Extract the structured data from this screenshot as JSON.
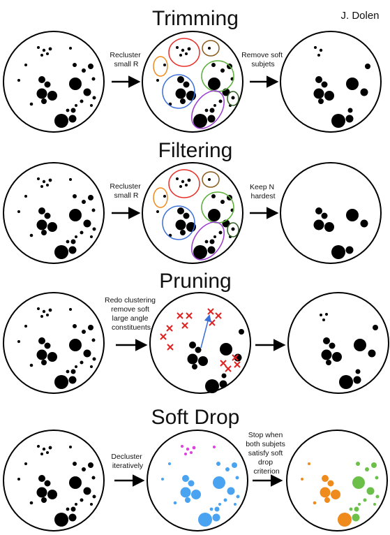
{
  "author": "J. Dolen",
  "colors": {
    "particle": "#000000",
    "red": "#e8312b",
    "orange": "#ef8a1c",
    "brown": "#8a5a1c",
    "green": "#5cb03a",
    "blue": "#3a6fd8",
    "purple": "#9b3bd1",
    "darkgreen": "#2b5a1e",
    "magenta": "#e040e0",
    "lightblue": "#4aa3f0",
    "softgreen": "#6cc04a",
    "cross": "#e02222",
    "arrow": "#3a6fd8"
  },
  "sections": [
    {
      "title": "Trimming",
      "steps": [
        {
          "lines": [
            "Recluster",
            "small R"
          ]
        },
        {
          "lines": [
            "Remove soft",
            "subjets"
          ]
        }
      ]
    },
    {
      "title": "Filtering",
      "steps": [
        {
          "lines": [
            "Recluster",
            "small R"
          ]
        },
        {
          "lines": [
            "Keep N",
            "hardest"
          ]
        }
      ]
    },
    {
      "title": "Pruning",
      "steps": [
        {
          "lines": [
            "Redo clustering",
            "remove soft",
            "large angle",
            "constituents"
          ]
        },
        {
          "lines": []
        }
      ]
    },
    {
      "title": "Soft Drop",
      "steps": [
        {
          "lines": [
            "Decluster",
            "iteratively"
          ]
        },
        {
          "lines": [
            "Stop when",
            "both subjets",
            "satisfy soft",
            "drop",
            "criterion"
          ]
        }
      ]
    }
  ]
}
